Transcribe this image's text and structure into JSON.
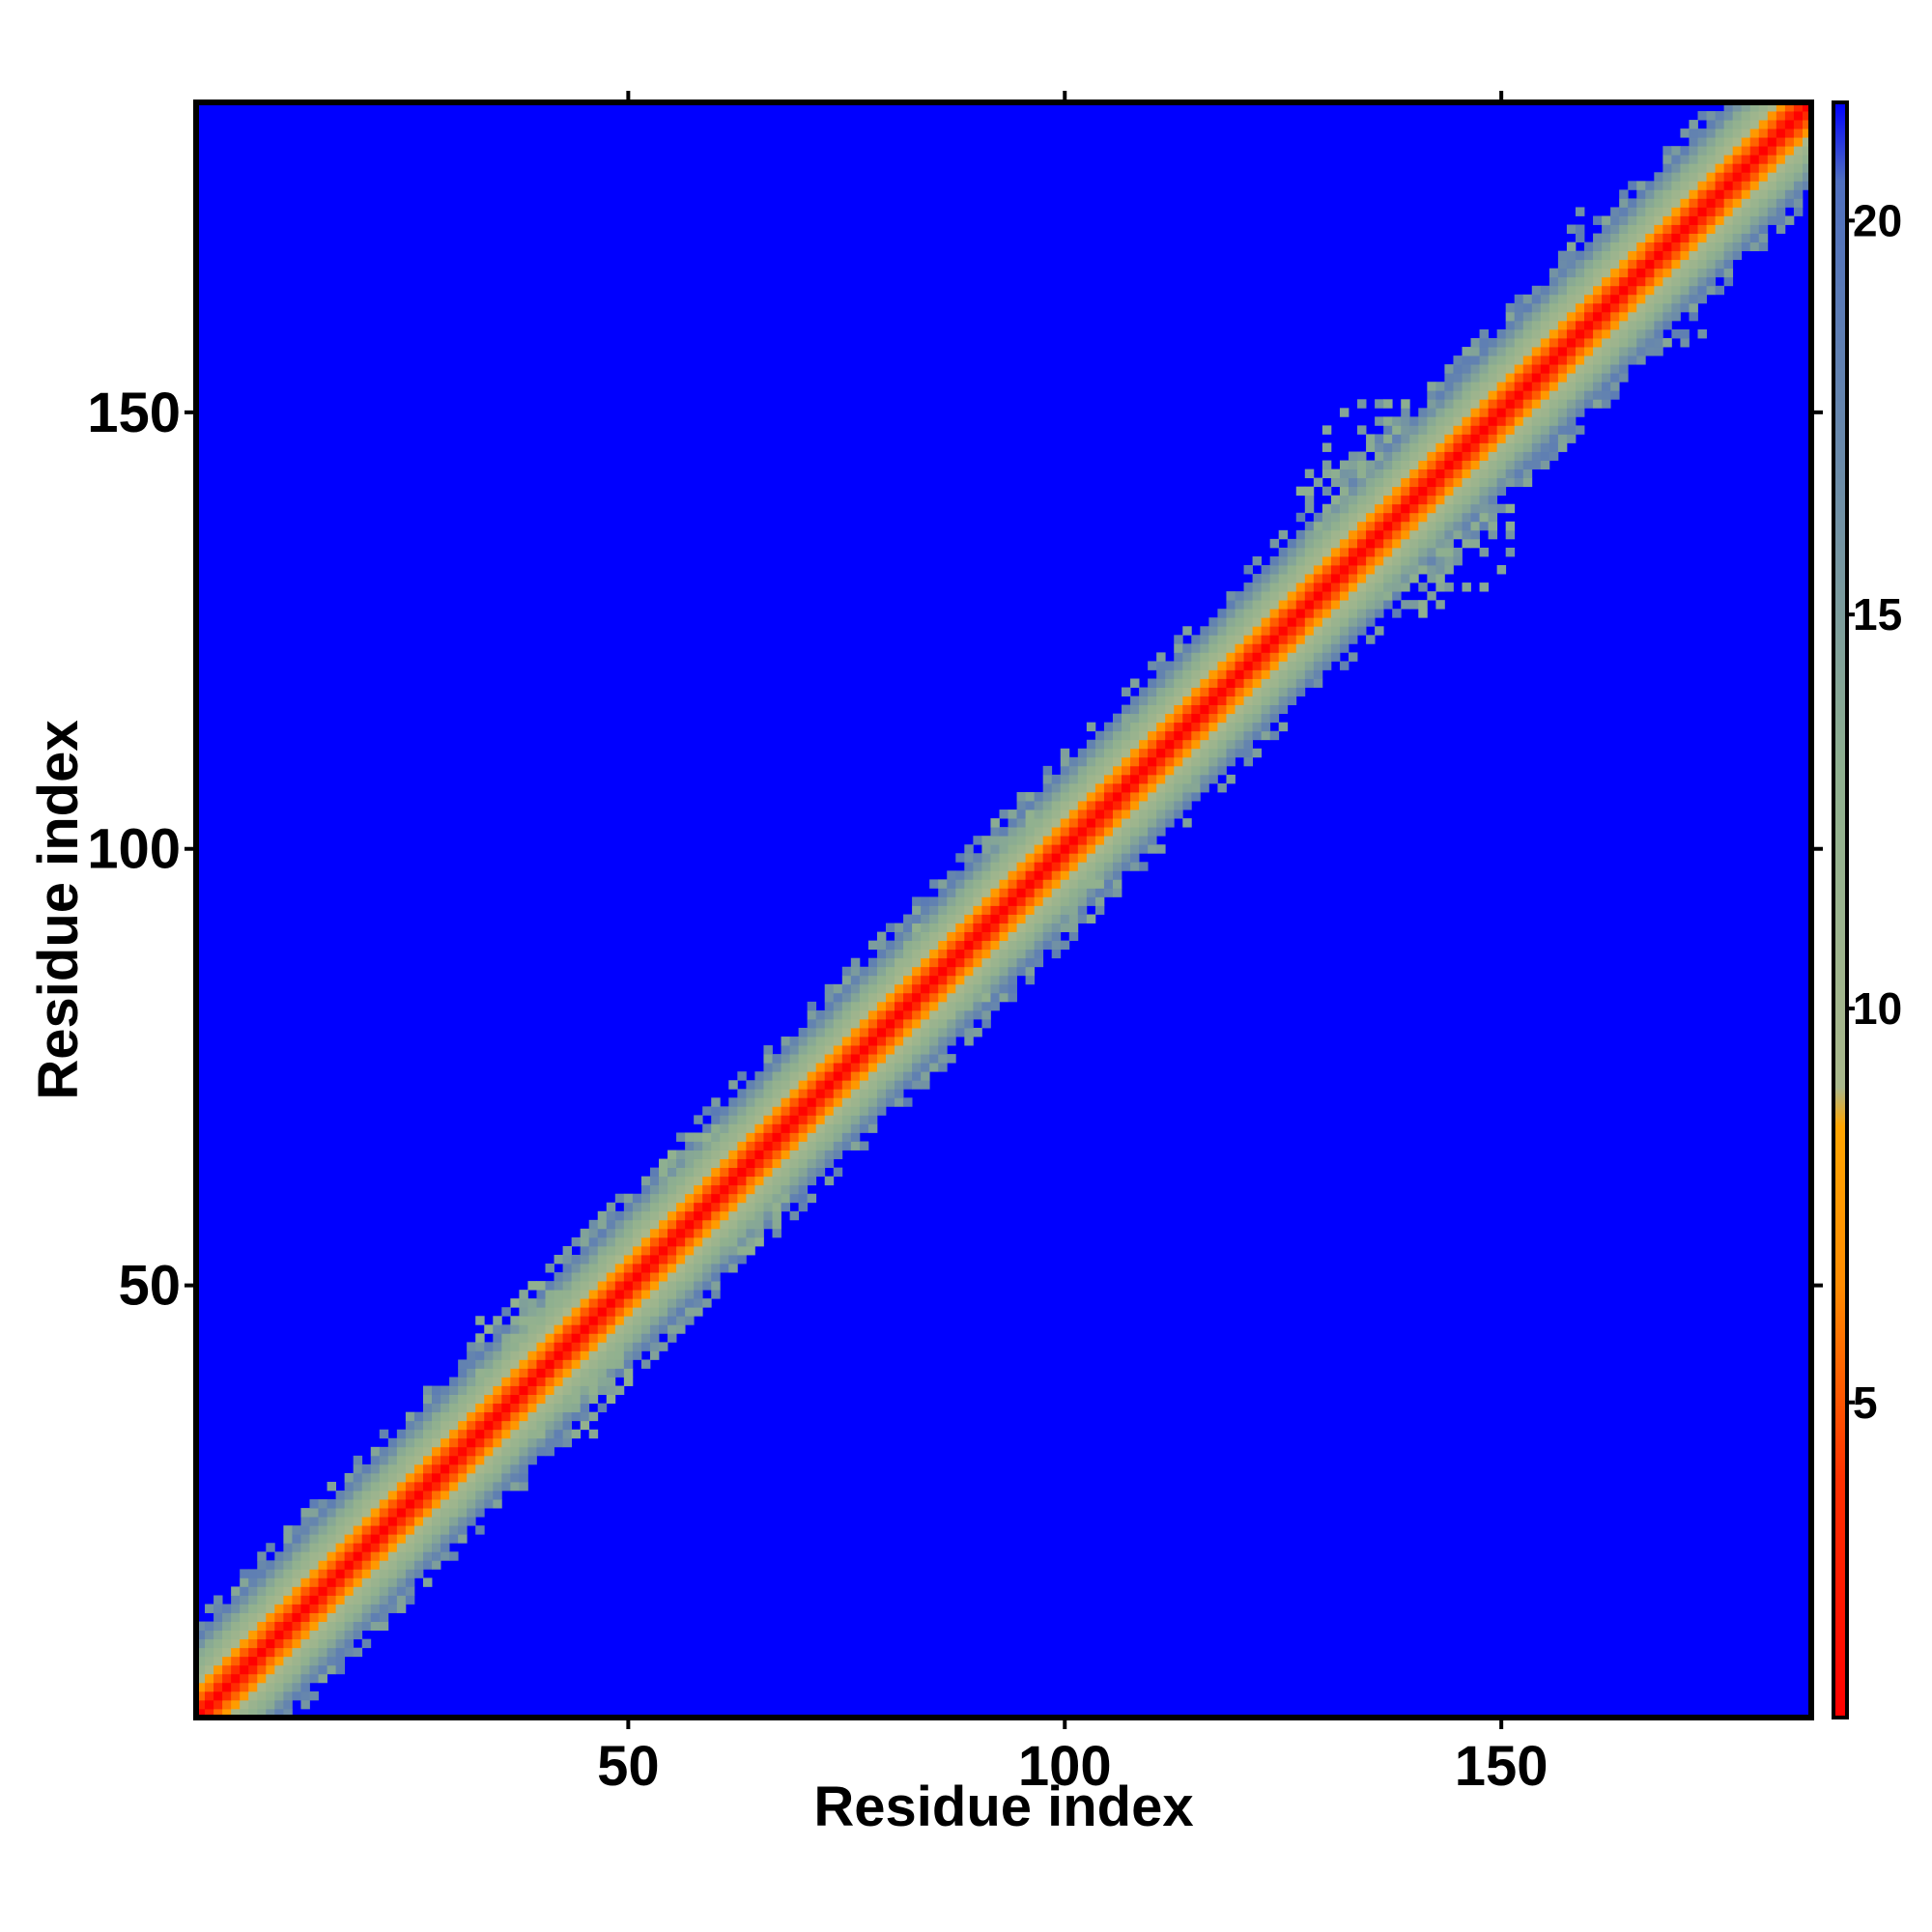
{
  "chart_data": {
    "type": "heatmap",
    "title": "",
    "xlabel": "Residue index",
    "ylabel": "Residue index",
    "n_residues": 185,
    "xlim": [
      1,
      185
    ],
    "ylim": [
      1,
      185
    ],
    "x_ticks": [
      50,
      100,
      150
    ],
    "y_ticks": [
      50,
      100,
      150
    ],
    "x_tick_labels": [
      "50",
      "100",
      "150"
    ],
    "y_tick_labels": [
      "50",
      "100",
      "150"
    ],
    "colorbar": {
      "range": [
        1,
        21.5
      ],
      "ticks": [
        5,
        10,
        15,
        20
      ],
      "tick_labels": [
        "5",
        "10",
        "15",
        "20"
      ],
      "stops": [
        {
          "value": 1,
          "color": "#ff0000"
        },
        {
          "value": 4,
          "color": "#ff3000"
        },
        {
          "value": 6.5,
          "color": "#ff8c00"
        },
        {
          "value": 8.5,
          "color": "#ffa500"
        },
        {
          "value": 9.0,
          "color": "#a9b88c"
        },
        {
          "value": 13,
          "color": "#8fb08f"
        },
        {
          "value": 17,
          "color": "#6a8aaa"
        },
        {
          "value": 20.5,
          "color": "#4f6fbf"
        },
        {
          "value": 21.5,
          "color": "#0000ff"
        }
      ]
    },
    "background_value": 21.5,
    "diagonal_band": {
      "description_values": "distance increases with |i-j|; core (|i-j|<=2) red, |i-j|~3-4 orange, halo up to ~|i-j|=8 green-gray",
      "profile_by_offset": [
        1,
        3.5,
        5.5,
        7.5,
        9.5,
        11,
        12.5,
        14,
        16,
        18
      ]
    },
    "clusters": [
      {
        "center": [
          5,
          5
        ],
        "radius": 6,
        "value": 12
      },
      {
        "center": [
          40,
          42
        ],
        "radius": 9,
        "value": 12
      },
      {
        "center": [
          60,
          62
        ],
        "radius": 7,
        "value": 12
      },
      {
        "center": [
          85,
          86
        ],
        "radius": 6,
        "value": 11
      },
      {
        "center": [
          97,
          99
        ],
        "radius": 8,
        "value": 12
      },
      {
        "center": [
          112,
          112
        ],
        "radius": 6,
        "value": 12
      },
      {
        "center": [
          138,
          140
        ],
        "radius": 12,
        "value": 13
      },
      {
        "center": [
          165,
          167
        ],
        "radius": 9,
        "value": 16
      }
    ],
    "grid": false,
    "legend": "colorbar-right"
  }
}
